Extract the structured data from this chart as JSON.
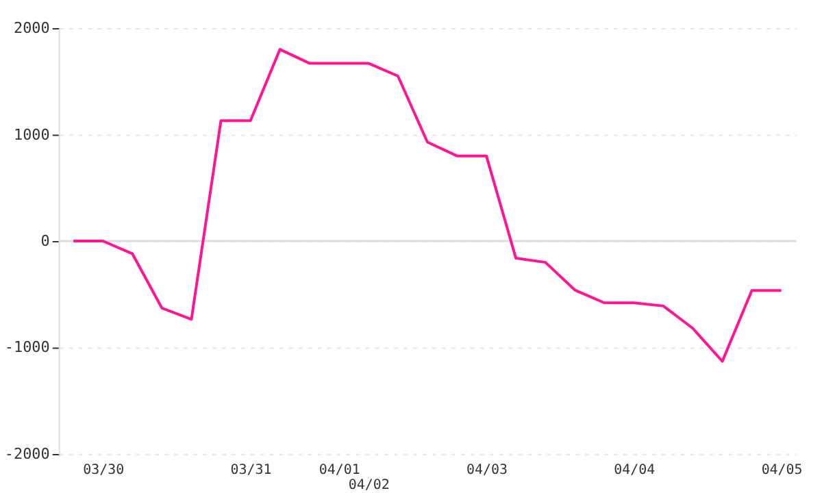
{
  "chart_data": {
    "type": "line",
    "categories": [
      null,
      "03/30",
      null,
      null,
      null,
      null,
      "03/31",
      null,
      null,
      "04/01",
      "04/02",
      null,
      null,
      null,
      "04/03",
      null,
      null,
      null,
      null,
      "04/04",
      null,
      null,
      null,
      null,
      "04/05"
    ],
    "series": [
      {
        "color": "#ff1493",
        "values": [
          0,
          0,
          -120,
          -630,
          -735,
          1130,
          1130,
          1800,
          1670,
          1670,
          1670,
          1550,
          930,
          800,
          800,
          -160,
          -200,
          -460,
          -580,
          -580,
          -610,
          -820,
          -1130,
          -465,
          -465
        ]
      }
    ],
    "ylim": [
      -2000,
      2000
    ],
    "yticks": [
      -2000,
      -1000,
      0,
      1000,
      2000
    ],
    "grid": "y",
    "legend": false,
    "marker": "none",
    "line_style": "solid",
    "ref_lines": [
      {
        "axis": "y",
        "value": 0,
        "color": "#dddddd"
      }
    ]
  }
}
